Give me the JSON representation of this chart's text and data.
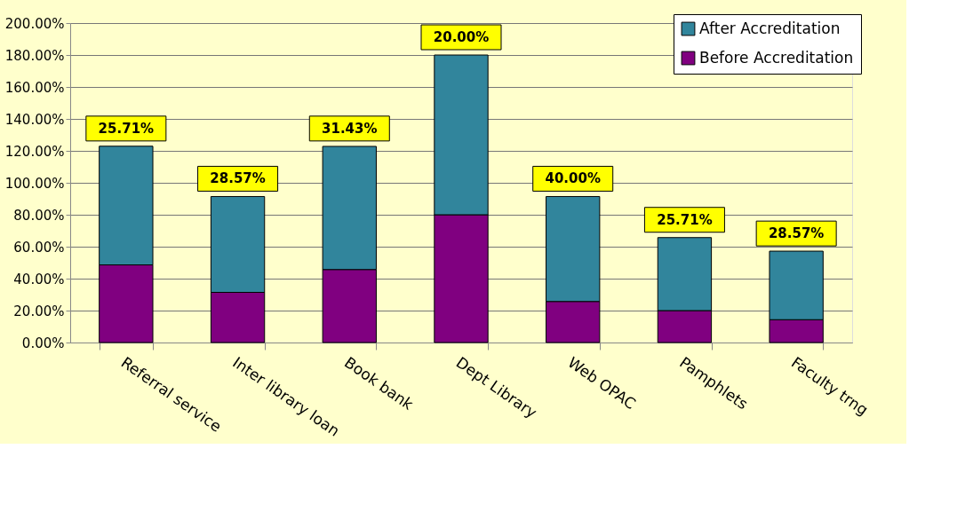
{
  "chart_data": {
    "type": "bar",
    "stacked": true,
    "categories": [
      "Referral service",
      "Inter library loan",
      "Book bank",
      "Dept Library",
      "Web OPAC",
      "Pamphlets",
      "Faculty trng"
    ],
    "series": [
      {
        "name": "Before Accreditation",
        "color": "#800080",
        "values": [
          48.6,
          31.4,
          45.7,
          80.0,
          25.7,
          20.0,
          14.3
        ]
      },
      {
        "name": "After Accreditation",
        "color": "#31859c",
        "values": [
          74.3,
          60.0,
          77.1,
          100.0,
          65.7,
          45.7,
          42.9
        ]
      }
    ],
    "ylim": [
      0,
      200
    ],
    "yticks": [
      {
        "value": 0,
        "label": "0.00%"
      },
      {
        "value": 20,
        "label": "20.00%"
      },
      {
        "value": 40,
        "label": "40.00%"
      },
      {
        "value": 60,
        "label": "60.00%"
      },
      {
        "value": 80,
        "label": "80.00%"
      },
      {
        "value": 100,
        "label": "100.00%"
      },
      {
        "value": 120,
        "label": "120.00%"
      },
      {
        "value": 140,
        "label": "140.00%"
      },
      {
        "value": 160,
        "label": "160.00%"
      },
      {
        "value": 180,
        "label": "180.00%"
      },
      {
        "value": 200,
        "label": "200.00%"
      }
    ],
    "grid": "y",
    "legend": "top right",
    "annotations": [
      {
        "text": "25.71%",
        "x": "Referral service",
        "y": 122.86
      },
      {
        "text": "28.57%",
        "x": "Inter library loan",
        "y": 91.43
      },
      {
        "text": "31.43%",
        "x": "Book bank",
        "y": 122.86
      },
      {
        "text": "20.00%",
        "x": "Dept Library",
        "y": 180.0
      },
      {
        "text": "40.00%",
        "x": "Web OPAC",
        "y": 91.43
      },
      {
        "text": "25.71%",
        "x": "Pamphlets",
        "y": 65.71
      },
      {
        "text": "28.57%",
        "x": "Faculty trng",
        "y": 57.14
      }
    ]
  }
}
